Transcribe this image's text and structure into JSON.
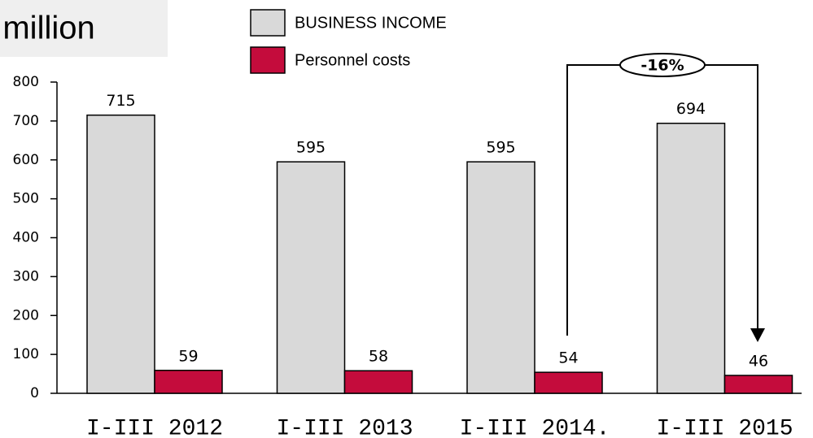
{
  "chart_data": {
    "type": "bar",
    "title": "€ million",
    "categories": [
      "I-III 2012",
      "I-III 2013",
      "I-III 2014.",
      "I-III 2015"
    ],
    "series": [
      {
        "name": "BUSINESS INCOME",
        "color": "#d9d9d9",
        "values": [
          715,
          595,
          595,
          694
        ]
      },
      {
        "name": "Personnel costs",
        "color": "#c40c3c",
        "values": [
          59,
          58,
          54,
          46
        ]
      }
    ],
    "ylim": [
      0,
      800
    ],
    "yticks": [
      0,
      100,
      200,
      300,
      400,
      500,
      600,
      700,
      800
    ],
    "annotation": "-16%"
  }
}
